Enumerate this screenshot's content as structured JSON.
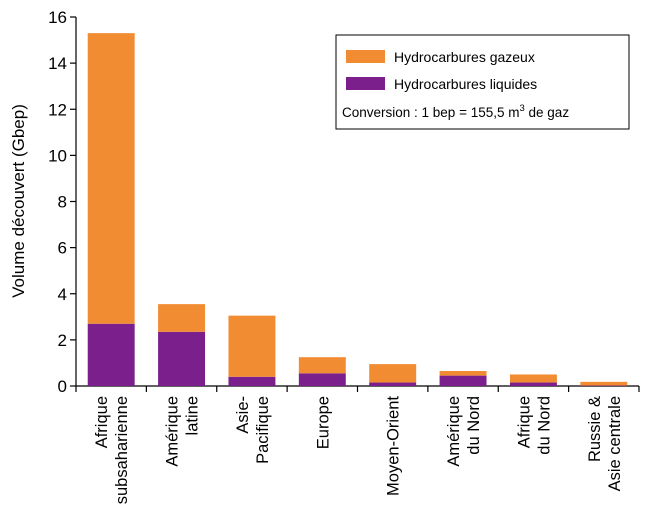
{
  "chart_data": {
    "type": "bar",
    "stacked": true,
    "ylabel": "Volume découvert (Gbep)",
    "ylim": [
      0,
      16
    ],
    "yticks": [
      "0",
      "2",
      "4",
      "6",
      "8",
      "10",
      "12",
      "14",
      "16"
    ],
    "categories": [
      [
        "Afrique",
        "subsaharienne"
      ],
      [
        "Amérique",
        "latine"
      ],
      [
        "Asie-",
        "Pacifique"
      ],
      [
        "Europe"
      ],
      [
        "Moyen-Orient"
      ],
      [
        "Amérique",
        "du Nord"
      ],
      [
        "Afrique",
        "du Nord"
      ],
      [
        "Russie &",
        "Asie centrale"
      ]
    ],
    "series": [
      {
        "name": "Hydrocarbures liquides",
        "color": "#7b1f8c",
        "values": [
          2.7,
          2.35,
          0.4,
          0.55,
          0.15,
          0.45,
          0.15,
          0.02
        ]
      },
      {
        "name": "Hydrocarbures gazeux",
        "color": "#f28c33",
        "values": [
          12.6,
          1.2,
          2.65,
          0.7,
          0.8,
          0.2,
          0.35,
          0.16
        ]
      }
    ],
    "legend": {
      "position": "top-right",
      "note_prefix": "Conversion : 1 bep = 155,5 m",
      "note_sup": "3",
      "note_suffix": " de gaz"
    }
  }
}
